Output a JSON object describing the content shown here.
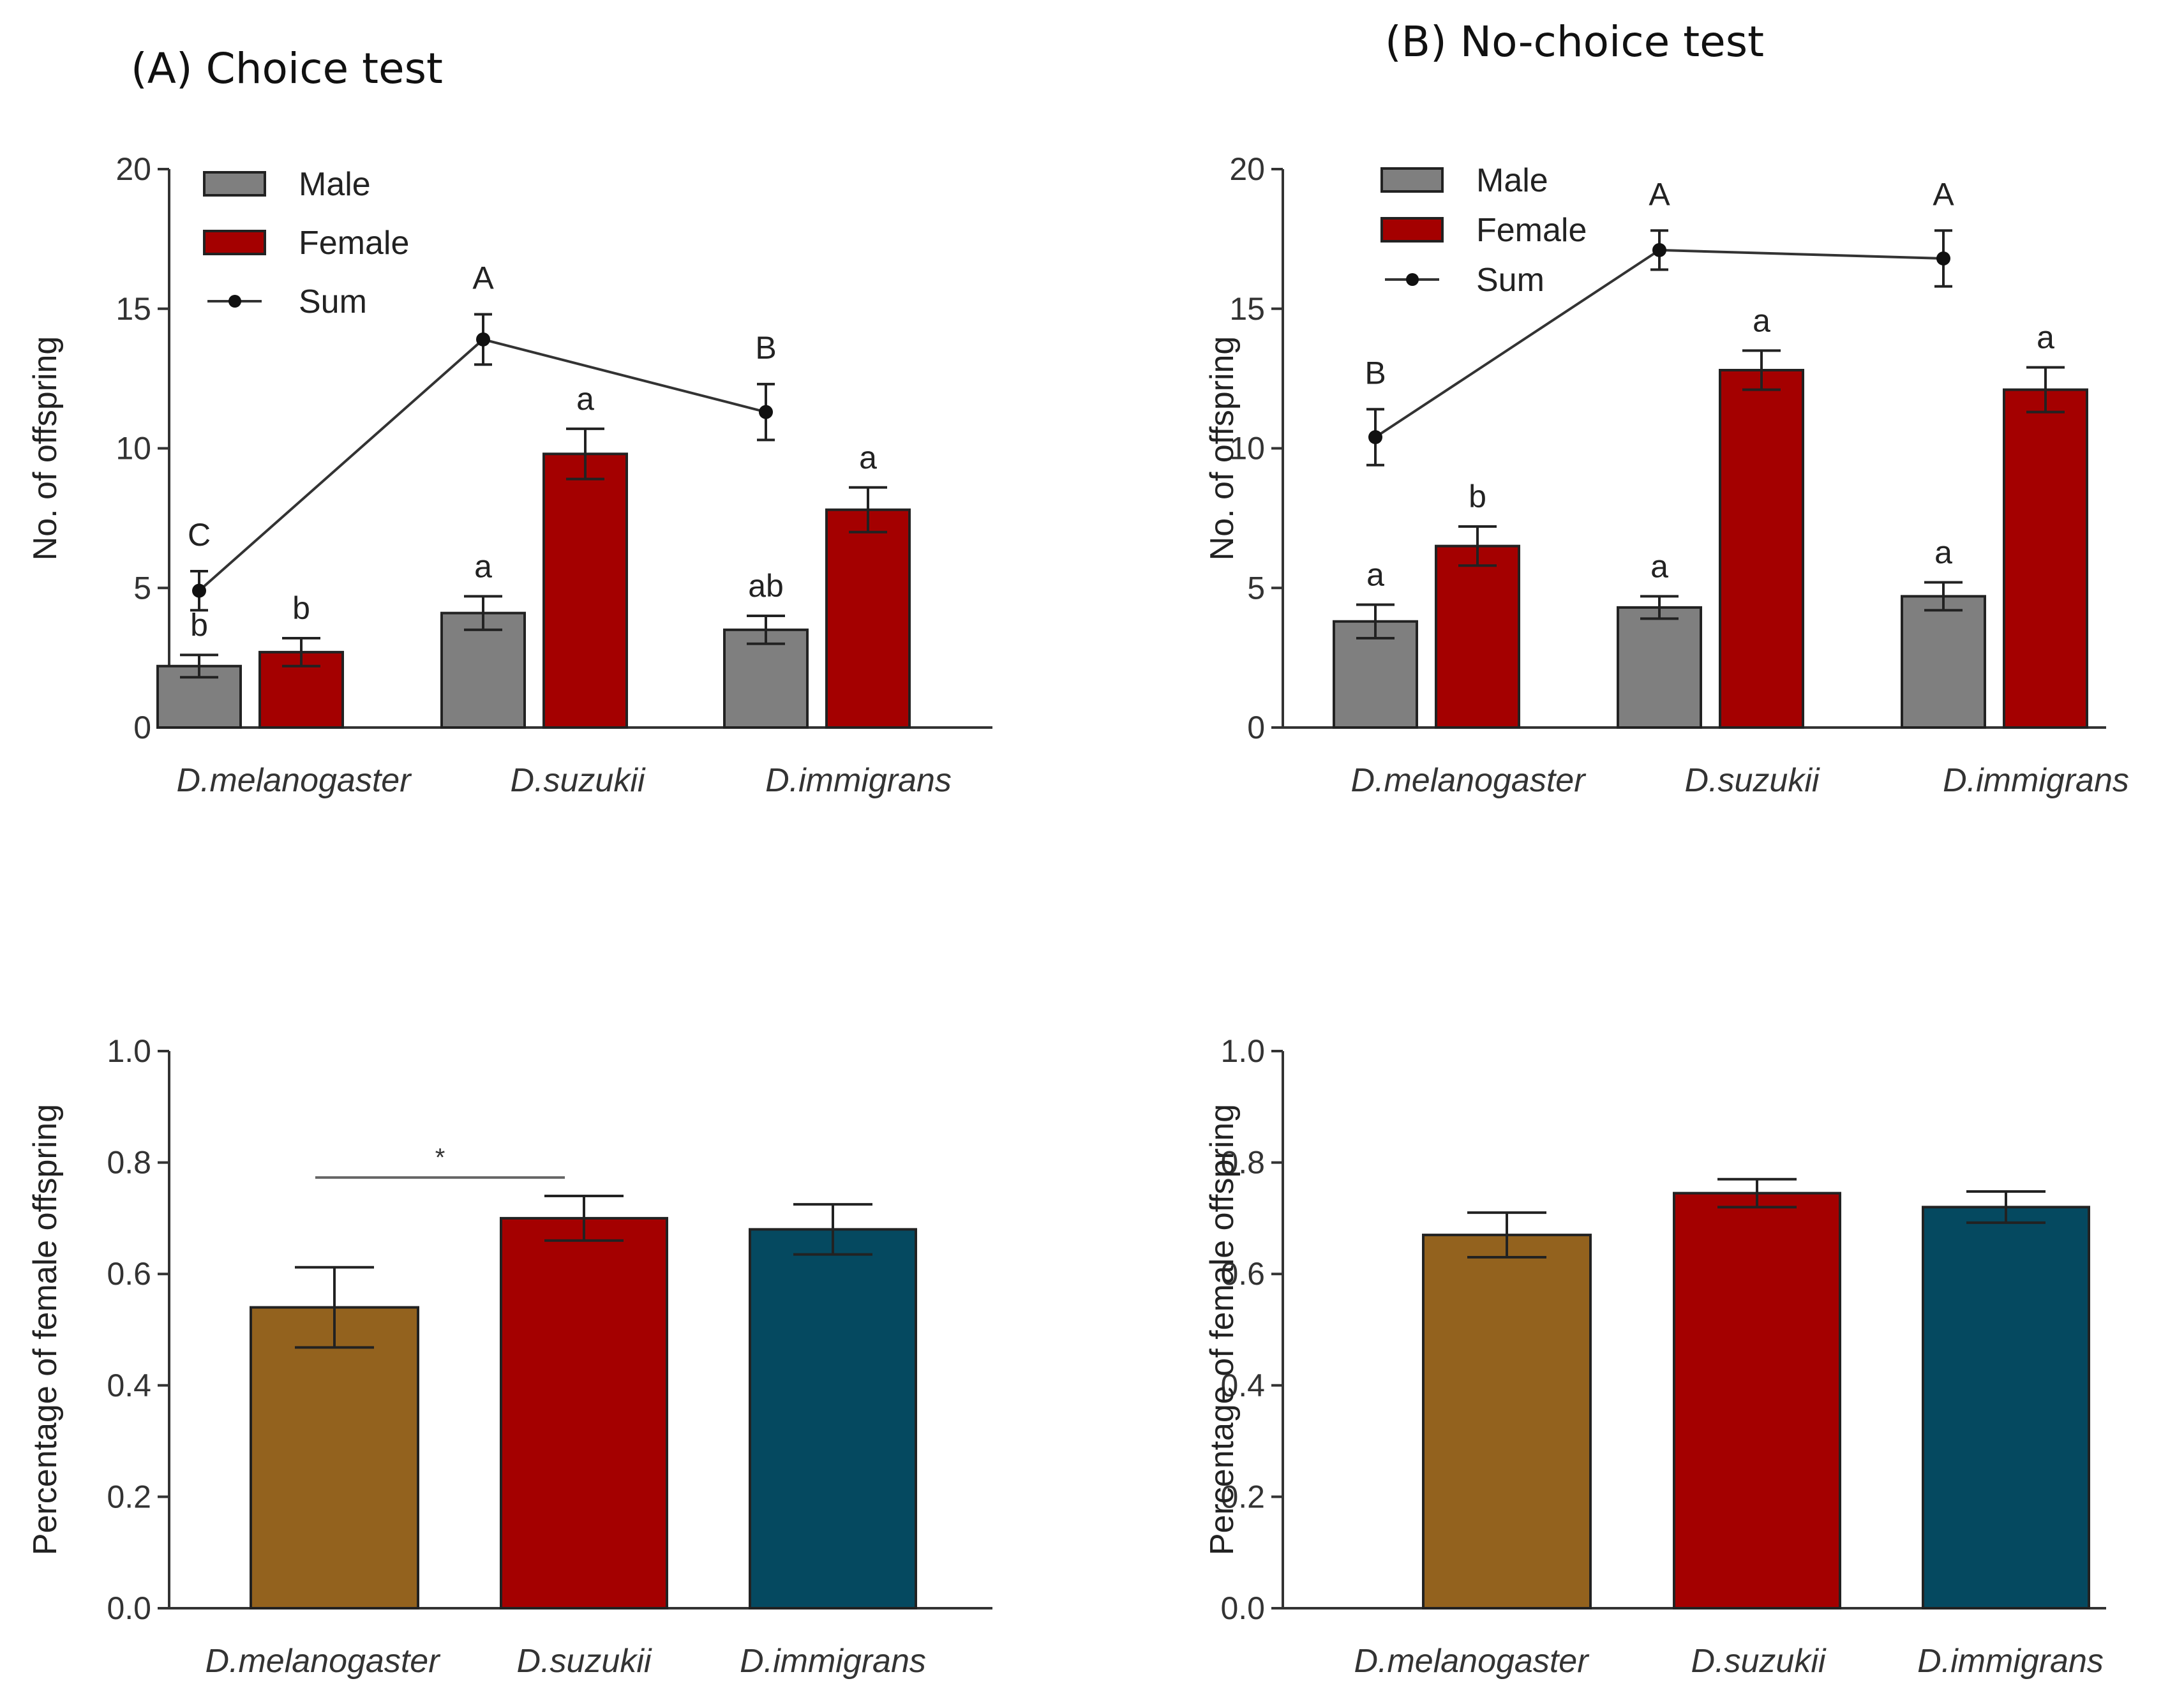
{
  "chart_data": [
    {
      "type": "bar",
      "title": "(A)  Choice test",
      "ylabel": "No. of offspring",
      "xlabel": "",
      "ylim": [
        0,
        20
      ],
      "yticks": [
        0,
        5,
        10,
        15,
        20
      ],
      "categories": [
        "D.melanogaster",
        "D.suzukii",
        "D.immigrans"
      ],
      "legend": [
        "Male",
        "Female",
        "Sum"
      ],
      "legend_position": "top-left",
      "series": [
        {
          "name": "Male",
          "color": "#7f7f7f",
          "values": [
            2.2,
            4.1,
            3.5
          ],
          "errors": [
            0.4,
            0.6,
            0.5
          ],
          "letters": [
            "b",
            "a",
            "ab"
          ]
        },
        {
          "name": "Female",
          "color": "#a40000",
          "values": [
            2.7,
            9.8,
            7.8
          ],
          "errors": [
            0.5,
            0.9,
            0.8
          ],
          "letters": [
            "b",
            "a",
            "a"
          ]
        }
      ],
      "sum": {
        "name": "Sum",
        "values": [
          4.9,
          13.9,
          11.3
        ],
        "errors": [
          0.7,
          0.9,
          1.0
        ],
        "letters": [
          "C",
          "A",
          "B"
        ]
      }
    },
    {
      "type": "bar",
      "title": "(B) No-choice test",
      "ylabel": "No. of offspring",
      "xlabel": "",
      "ylim": [
        0,
        20
      ],
      "yticks": [
        0,
        5,
        10,
        15,
        20
      ],
      "categories": [
        "D.melanogaster",
        "D.suzukii",
        "D.immigrans"
      ],
      "legend": [
        "Male",
        "Female",
        "Sum"
      ],
      "legend_position": "top-left",
      "series": [
        {
          "name": "Male",
          "color": "#7f7f7f",
          "values": [
            3.8,
            4.3,
            4.7
          ],
          "errors": [
            0.6,
            0.4,
            0.5
          ],
          "letters": [
            "a",
            "a",
            "a"
          ]
        },
        {
          "name": "Female",
          "color": "#a40000",
          "values": [
            6.5,
            12.8,
            12.1
          ],
          "errors": [
            0.7,
            0.7,
            0.8
          ],
          "letters": [
            "b",
            "a",
            "a"
          ]
        }
      ],
      "sum": {
        "name": "Sum",
        "values": [
          10.4,
          17.1,
          16.8
        ],
        "errors": [
          1.0,
          0.7,
          1.0
        ],
        "letters": [
          "B",
          "A",
          "A"
        ]
      }
    },
    {
      "type": "bar",
      "title": "",
      "ylabel": "Percentage of female offspring",
      "xlabel": "",
      "ylim": [
        0,
        1.0
      ],
      "yticks": [
        "0.0",
        "0.2",
        "0.4",
        "0.6",
        "0.8",
        "1.0"
      ],
      "categories": [
        "D.melanogaster",
        "D.suzukii",
        "D.immigrans"
      ],
      "colors": [
        "#93621e",
        "#a40000",
        "#054960"
      ],
      "values": [
        0.54,
        0.7,
        0.68
      ],
      "errors": [
        0.072,
        0.04,
        0.045
      ],
      "significance": {
        "from": 0,
        "to": 1,
        "label": "*"
      }
    },
    {
      "type": "bar",
      "title": "",
      "ylabel": "Percentage of female offspring",
      "xlabel": "",
      "ylim": [
        0,
        1.0
      ],
      "yticks": [
        "0.0",
        "0.2",
        "0.4",
        "0.6",
        "0.8",
        "1.0"
      ],
      "categories": [
        "D.melanogaster",
        "D.suzukii",
        "D.immigrans"
      ],
      "colors": [
        "#93621e",
        "#a40000",
        "#054960"
      ],
      "values": [
        0.67,
        0.745,
        0.72
      ],
      "errors": [
        0.04,
        0.025,
        0.028
      ]
    }
  ]
}
